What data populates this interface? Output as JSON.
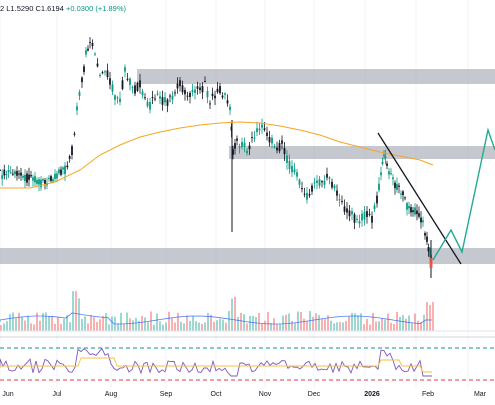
{
  "header": {
    "partial_open": "2",
    "low": "L1.5290",
    "close": "C1.6194",
    "change": "+0.0300 (+1.89%)"
  },
  "colors": {
    "up": "#089981",
    "down": "#131722",
    "ma": "#f5a623",
    "rsi": "#7e57c2",
    "rsi_ma": "#f5c242",
    "zone": "#b2b5be",
    "projection": "#22ab94",
    "trendline": "#131722",
    "vol_up": "#26a69a",
    "vol_down": "#ef5350",
    "vol_ma": "#2962ff",
    "level_top": "#089981",
    "level_bottom": "#f23645"
  },
  "chart_data": {
    "type": "candlestick",
    "x_axis_labels": [
      "Jun",
      "Jul",
      "Aug",
      "Sep",
      "Oct",
      "Nov",
      "Dec",
      "2026",
      "Feb",
      "Mar"
    ],
    "price_series_approx": [
      {
        "month": "Jun",
        "value": 1.2
      },
      {
        "month": "Jul",
        "value": 1.3
      },
      {
        "month": "Jul (peak)",
        "value": 2.4
      },
      {
        "month": "Aug",
        "value": 2.1
      },
      {
        "month": "Sep",
        "value": 2.05
      },
      {
        "month": "Oct",
        "value": 2.05
      },
      {
        "month": "Oct (crash wick)",
        "value": 0.8
      },
      {
        "month": "Nov",
        "value": 1.6
      },
      {
        "month": "Dec",
        "value": 1.1
      },
      {
        "month": "2026",
        "value": 1.5
      },
      {
        "month": "Feb",
        "value": 0.6
      }
    ],
    "zones": [
      "resistance-upper",
      "resistance-middle",
      "support-lower"
    ],
    "indicators": [
      "moving-average",
      "volume",
      "volume-ma",
      "rsi",
      "rsi-ma"
    ],
    "projection": "zigzag-up-to-Mar",
    "trendline": "descending"
  }
}
